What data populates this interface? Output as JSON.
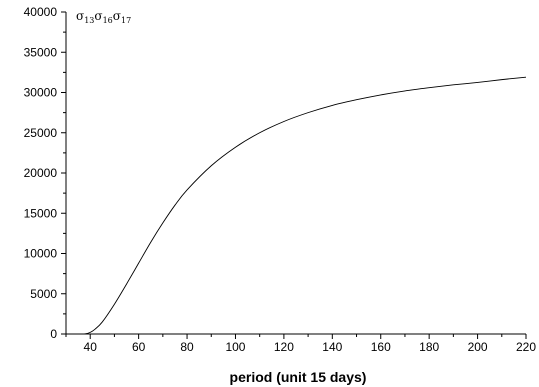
{
  "chart_data": {
    "type": "line",
    "title": "",
    "xlabel": "period (unit 15 days)",
    "ylabel": "",
    "xlim": [
      30,
      220
    ],
    "ylim": [
      0,
      40000
    ],
    "x_ticks": [
      40,
      60,
      80,
      100,
      120,
      140,
      160,
      180,
      200,
      220
    ],
    "y_ticks": [
      0,
      5000,
      10000,
      15000,
      20000,
      25000,
      30000,
      35000,
      40000
    ],
    "grid": false,
    "legend": "none",
    "annotation": {
      "base": "σ",
      "parts": [
        {
          "symbol": "σ",
          "sub": "13"
        },
        {
          "symbol": "σ",
          "sub": "16"
        },
        {
          "symbol": "σ",
          "sub": "17"
        }
      ]
    },
    "series": [
      {
        "color": "#000000",
        "x": [
          36,
          38,
          40,
          42,
          45,
          50,
          55,
          60,
          65,
          70,
          75,
          80,
          90,
          100,
          110,
          120,
          130,
          140,
          150,
          160,
          170,
          180,
          190,
          200,
          210,
          220
        ],
        "y": [
          0,
          20,
          200,
          600,
          1500,
          3700,
          6200,
          8800,
          11400,
          13800,
          16000,
          17900,
          20900,
          23200,
          25000,
          26400,
          27500,
          28400,
          29100,
          29700,
          30200,
          30600,
          30950,
          31250,
          31600,
          31900
        ]
      }
    ]
  }
}
